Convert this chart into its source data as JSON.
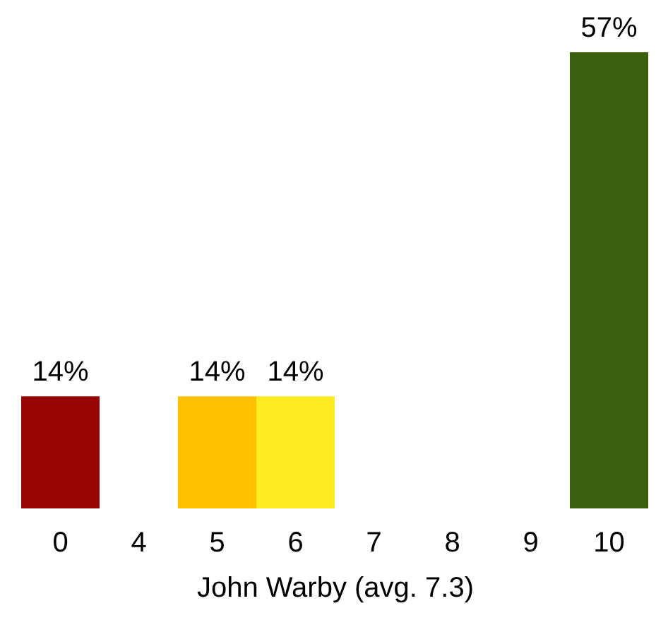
{
  "chart_data": {
    "type": "bar",
    "xlabel": "John Warby (avg. 7.3)",
    "categories": [
      "0",
      "4",
      "5",
      "6",
      "7",
      "8",
      "9",
      "10"
    ],
    "values": [
      14,
      0,
      14,
      14,
      0,
      0,
      0,
      57
    ],
    "colors": [
      "#990606",
      null,
      "#ffc000",
      "#ffeb22",
      null,
      null,
      null,
      "#3c600f"
    ],
    "value_labels": [
      "14%",
      null,
      "14%",
      "14%",
      null,
      null,
      null,
      "57%"
    ],
    "tick_labels": "x"
  }
}
